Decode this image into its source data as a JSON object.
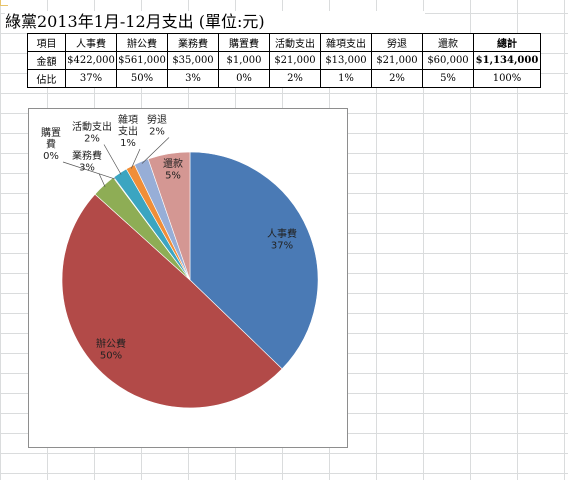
{
  "title": "綠黨2013年1月-12月支出 (單位:元)",
  "table": {
    "header": [
      "項目",
      "人事費",
      "辦公費",
      "業務費",
      "購置費",
      "活動支出",
      "雜項支出",
      "勞退",
      "還款",
      "總計"
    ],
    "amounts": [
      "金額",
      "$422,000",
      "$561,000",
      "$35,000",
      "$1,000",
      "$21,000",
      "$13,000",
      "$21,000",
      "$60,000",
      "$1,134,000"
    ],
    "shares": [
      "佔比",
      "37%",
      "50%",
      "3%",
      "0%",
      "2%",
      "1%",
      "2%",
      "5%",
      "100%"
    ]
  },
  "chart_data": {
    "type": "pie",
    "start_angle": "12 o'clock",
    "direction": "clockwise",
    "slices": [
      {
        "name": "人事費",
        "value": 422000,
        "label": "37%",
        "color": "#4a7ab5"
      },
      {
        "name": "辦公費",
        "value": 561000,
        "label": "50%",
        "color": "#b24a48"
      },
      {
        "name": "業務費",
        "value": 35000,
        "label": "3%",
        "color": "#8ead55"
      },
      {
        "name": "購置費",
        "value": 1000,
        "label": "0%",
        "color": "#7459a0"
      },
      {
        "name": "活動支出",
        "value": 21000,
        "label": "2%",
        "color": "#3ba5c1"
      },
      {
        "name": "雜項支出",
        "value": 13000,
        "label": "1%",
        "color": "#f08e38"
      },
      {
        "name": "勞退",
        "value": 21000,
        "label": "2%",
        "color": "#97aed7"
      },
      {
        "name": "還款",
        "value": 60000,
        "label": "5%",
        "color": "#d49793"
      }
    ],
    "display_labels": [
      {
        "lines": [
          "人事費",
          "37%"
        ]
      },
      {
        "lines": [
          "辦公費",
          "50%"
        ]
      },
      {
        "lines": [
          "業務費",
          "3%"
        ]
      },
      {
        "lines": [
          "購置",
          "費",
          "0%"
        ]
      },
      {
        "lines": [
          "活動支出",
          "2%"
        ]
      },
      {
        "lines": [
          "雜項",
          "支出",
          "1%"
        ]
      },
      {
        "lines": [
          "勞退",
          "2%"
        ]
      },
      {
        "lines": [
          "還款",
          "5%"
        ]
      }
    ]
  }
}
